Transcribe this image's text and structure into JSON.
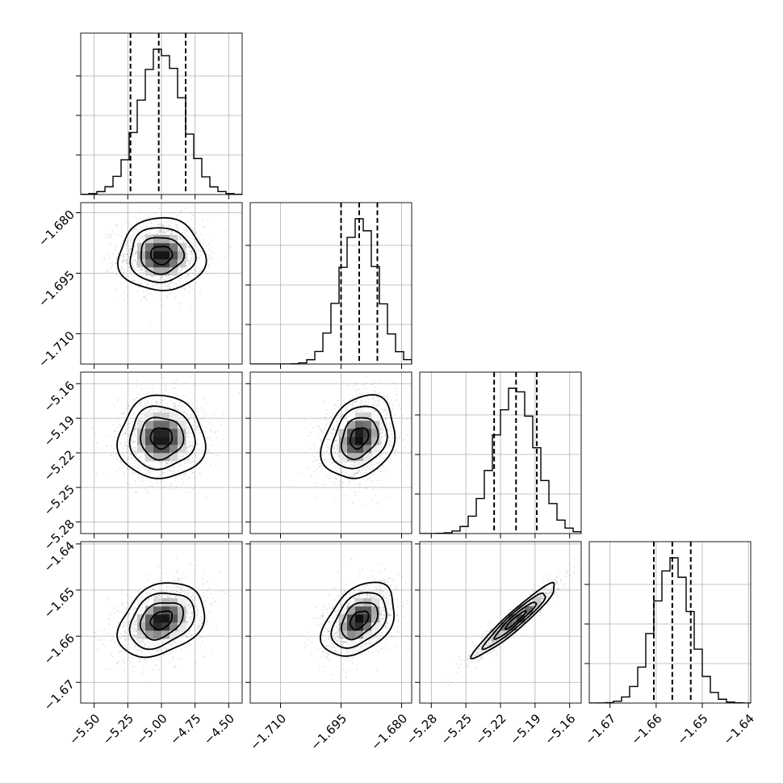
{
  "chart_data": {
    "type": "corner",
    "parameters": [
      {
        "name": "",
        "mean": -5.0,
        "sigma": 0.16,
        "range": [
          -5.6,
          -4.4
        ],
        "ticks": [
          -5.5,
          -5.25,
          -5.0,
          -4.75,
          -4.5
        ],
        "tick_labels": [
          "−5.50",
          "−5.25",
          "−5.00",
          "−4.75",
          "−4.50"
        ],
        "quantiles": [
          -5.23,
          -5.02,
          -4.82
        ]
      },
      {
        "name": "",
        "mean": -1.6905,
        "sigma": 0.0045,
        "range": [
          -1.7175,
          -1.6775
        ],
        "ticks": [
          -1.71,
          -1.695,
          -1.68
        ],
        "tick_labels": [
          "−1.710",
          "−1.695",
          "−1.680"
        ],
        "quantiles": [
          -1.695,
          -1.6905,
          -1.686
        ]
      },
      {
        "name": "",
        "mean": -5.207,
        "sigma": 0.018,
        "range": [
          -5.29,
          -5.15
        ],
        "ticks": [
          -5.28,
          -5.25,
          -5.22,
          -5.19,
          -5.16
        ],
        "tick_labels": [
          "−5.28",
          "−5.25",
          "−5.22",
          "−5.19",
          "−5.16"
        ],
        "quantiles": [
          -5.2255,
          -5.2065,
          -5.1885
        ]
      },
      {
        "name": "",
        "mean": -1.6565,
        "sigma": 0.004,
        "range": [
          -1.6745,
          -1.6395
        ],
        "ticks": [
          -1.67,
          -1.66,
          -1.65,
          -1.64
        ],
        "tick_labels": [
          "−1.67",
          "−1.66",
          "−1.65",
          "−1.64"
        ],
        "quantiles": [
          -1.6605,
          -1.6565,
          -1.6525
        ]
      }
    ],
    "correlations": [
      [
        1.0,
        0.0,
        0.0,
        0.3
      ],
      [
        0.0,
        1.0,
        0.25,
        0.4
      ],
      [
        0.0,
        0.25,
        1.0,
        0.95
      ],
      [
        0.3,
        0.4,
        0.95,
        1.0
      ]
    ],
    "histogram_bins": 20,
    "grid": true,
    "colors": {
      "hist_line": "#000000",
      "scatter": "#7a7a7a",
      "contour": "#000000",
      "density_max": "#000000"
    }
  }
}
